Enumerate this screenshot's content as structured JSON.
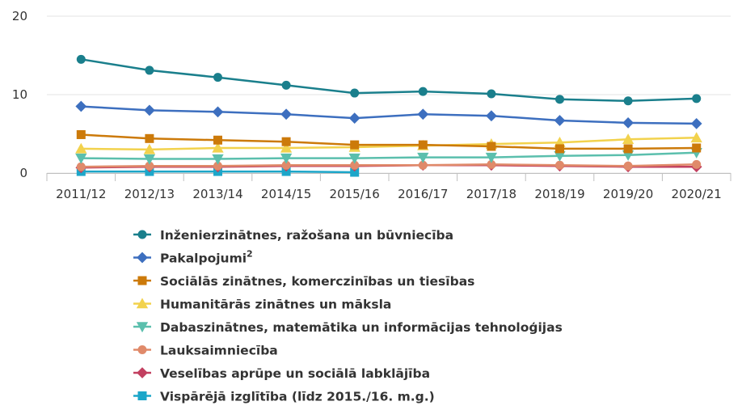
{
  "chart_data": {
    "type": "line",
    "categories": [
      "2011/12",
      "2012/13",
      "2013/14",
      "2014/15",
      "2015/16",
      "2016/17",
      "2017/18",
      "2018/19",
      "2019/20",
      "2020/21"
    ],
    "ylim": [
      0,
      20
    ],
    "yticks": [
      0,
      10,
      20
    ],
    "grid": "horizontal",
    "legend_position": "bottom",
    "series": [
      {
        "name": "Inženierzinātnes, ražošana un būvniecība",
        "color": "#1a7f8c",
        "marker": "circle",
        "values": [
          14.5,
          13.1,
          12.2,
          11.2,
          10.2,
          10.4,
          10.1,
          9.4,
          9.2,
          9.5
        ]
      },
      {
        "name": "Pakalpojumi",
        "name_sup": "2",
        "color": "#3d6fbf",
        "marker": "diamond",
        "values": [
          8.5,
          8.0,
          7.8,
          7.5,
          7.0,
          7.5,
          7.3,
          6.7,
          6.4,
          6.3
        ]
      },
      {
        "name": "Sociālās zinātnes, komerczinības un tiesības",
        "color": "#cc7a0a",
        "marker": "square",
        "values": [
          4.9,
          4.4,
          4.2,
          4.0,
          3.6,
          3.6,
          3.4,
          3.1,
          3.1,
          3.2
        ]
      },
      {
        "name": "Humanitārās zinātnes un māksla",
        "color": "#f2d24d",
        "marker": "triangle",
        "values": [
          3.1,
          3.0,
          3.2,
          3.2,
          3.3,
          3.5,
          3.7,
          3.9,
          4.3,
          4.5
        ]
      },
      {
        "name": "Dabaszinātnes, matemātika un informācijas tehnoloģijas",
        "color": "#5bbfad",
        "marker": "triangle-down",
        "values": [
          1.9,
          1.8,
          1.8,
          1.9,
          1.9,
          2.0,
          2.0,
          2.2,
          2.3,
          2.6
        ]
      },
      {
        "name": "Lauksaimniecība",
        "color": "#e08a6a",
        "marker": "circle",
        "values": [
          0.8,
          0.9,
          0.9,
          1.0,
          1.0,
          1.0,
          1.1,
          1.0,
          0.9,
          1.1
        ]
      },
      {
        "name": "Veselības aprūpe un sociālā labklājība",
        "color": "#c24060",
        "marker": "diamond",
        "values": [
          0.7,
          0.8,
          0.8,
          0.9,
          0.9,
          1.0,
          1.0,
          0.9,
          0.8,
          0.8
        ]
      },
      {
        "name": "Vispārējā izglītība (līdz 2015./16. m.g.)",
        "color": "#1ca6c9",
        "marker": "square",
        "values": [
          0.2,
          0.2,
          0.2,
          0.2,
          0.1,
          null,
          null,
          null,
          null,
          null
        ]
      }
    ]
  }
}
